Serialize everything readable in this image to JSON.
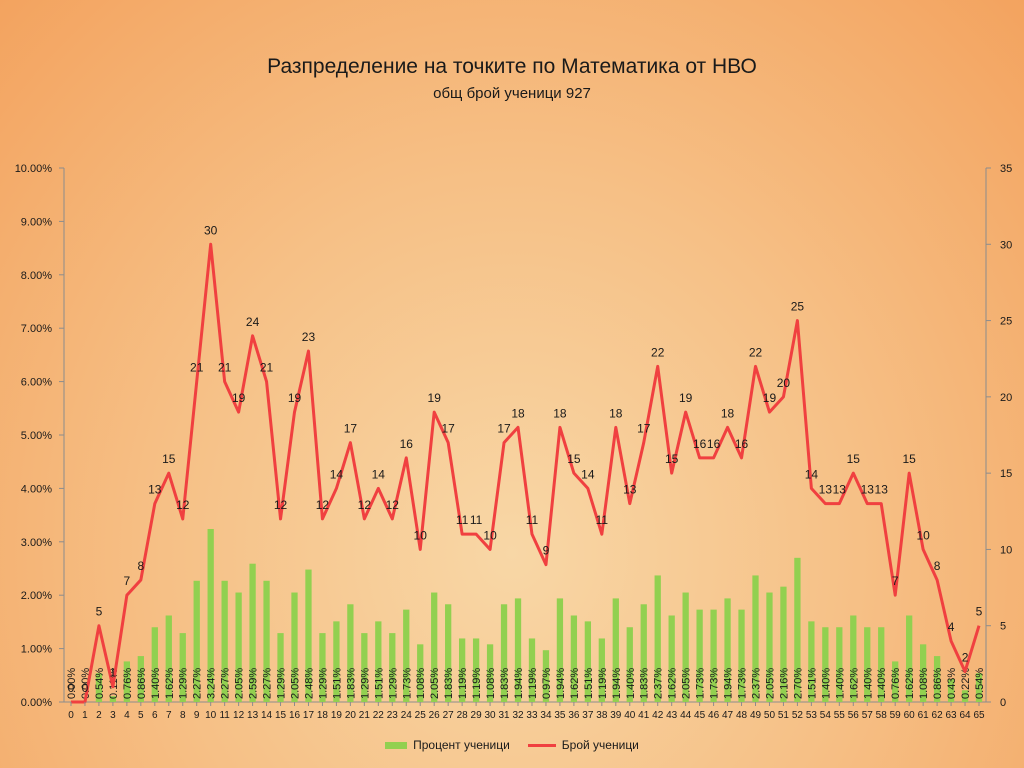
{
  "chart_data": {
    "type": "bar",
    "title": "Разпределение на точките по Математика от НВО",
    "subtitle": "общ брой ученици 927",
    "categories": [
      "0",
      "1",
      "2",
      "3",
      "4",
      "5",
      "6",
      "7",
      "8",
      "9",
      "10",
      "11",
      "12",
      "13",
      "14",
      "15",
      "16",
      "17",
      "18",
      "19",
      "20",
      "21",
      "22",
      "23",
      "24",
      "25",
      "26",
      "27",
      "28",
      "29",
      "30",
      "31",
      "32",
      "33",
      "34",
      "35",
      "36",
      "37",
      "38",
      "39",
      "40",
      "41",
      "42",
      "43",
      "44",
      "45",
      "46",
      "47",
      "48",
      "49",
      "50",
      "51",
      "52",
      "53",
      "54",
      "55",
      "56",
      "57",
      "58",
      "59",
      "60",
      "61",
      "62",
      "63",
      "64",
      "65"
    ],
    "series": [
      {
        "name": "Процент ученици",
        "type": "bar",
        "axis": "left",
        "color": "#92d050",
        "values": [
          0.0,
          0.0,
          0.54,
          0.11,
          0.76,
          0.86,
          1.4,
          1.62,
          1.29,
          2.27,
          3.24,
          2.27,
          2.05,
          2.59,
          2.27,
          1.29,
          2.05,
          2.48,
          1.29,
          1.51,
          1.83,
          1.29,
          1.51,
          1.29,
          1.73,
          1.08,
          2.05,
          1.83,
          1.19,
          1.19,
          1.08,
          1.83,
          1.94,
          1.19,
          0.97,
          1.94,
          1.62,
          1.51,
          1.19,
          1.94,
          1.4,
          1.83,
          2.37,
          1.62,
          2.05,
          1.73,
          1.73,
          1.94,
          1.73,
          2.37,
          2.05,
          2.16,
          2.7,
          1.51,
          1.4,
          1.4,
          1.62,
          1.4,
          1.4,
          0.76,
          1.62,
          1.08,
          0.86,
          0.43,
          0.22,
          0.54
        ],
        "labels": [
          "0.00%",
          "0.00%",
          "0.54%",
          "0.11%",
          "0.76%",
          "0.86%",
          "1.40%",
          "1.62%",
          "1.29%",
          "2.27%",
          "3.24%",
          "2.27%",
          "2.05%",
          "2.59%",
          "2.27%",
          "1.29%",
          "2.05%",
          "2.48%",
          "1.29%",
          "1.51%",
          "1.83%",
          "1.29%",
          "1.51%",
          "1.29%",
          "1.73%",
          "1.08%",
          "2.05%",
          "1.83%",
          "1.19%",
          "1.19%",
          "1.08%",
          "1.83%",
          "1.94%",
          "1.19%",
          "0.97%",
          "1.94%",
          "1.62%",
          "1.51%",
          "1.19%",
          "1.94%",
          "1.40%",
          "1.83%",
          "2.37%",
          "1.62%",
          "2.05%",
          "1.73%",
          "1.73%",
          "1.94%",
          "1.73%",
          "2.37%",
          "2.05%",
          "2.16%",
          "2.70%",
          "1.51%",
          "1.40%",
          "1.40%",
          "1.62%",
          "1.40%",
          "1.40%",
          "0.76%",
          "1.62%",
          "1.08%",
          "0.86%",
          "0.43%",
          "0.22%",
          "0.54%"
        ]
      },
      {
        "name": "Брой ученици",
        "type": "line",
        "axis": "right",
        "color": "#f04040",
        "values": [
          0,
          0,
          5,
          1,
          7,
          8,
          13,
          15,
          12,
          21,
          30,
          21,
          19,
          24,
          21,
          12,
          19,
          23,
          12,
          14,
          17,
          12,
          14,
          12,
          16,
          10,
          19,
          17,
          11,
          11,
          10,
          17,
          18,
          11,
          9,
          18,
          15,
          14,
          11,
          18,
          13,
          17,
          22,
          15,
          19,
          16,
          16,
          18,
          16,
          22,
          19,
          20,
          25,
          14,
          13,
          13,
          15,
          13,
          13,
          7,
          15,
          10,
          8,
          4,
          2,
          5
        ]
      }
    ],
    "left_axis": {
      "min": 0,
      "max": 10,
      "step": 1,
      "ticks": [
        "0.00%",
        "1.00%",
        "2.00%",
        "3.00%",
        "4.00%",
        "5.00%",
        "6.00%",
        "7.00%",
        "8.00%",
        "9.00%",
        "10.00%"
      ]
    },
    "right_axis": {
      "min": 0,
      "max": 35,
      "step": 5,
      "ticks": [
        "0",
        "5",
        "10",
        "15",
        "20",
        "25",
        "30",
        "35"
      ]
    },
    "grid": false,
    "legend": "bottom"
  }
}
